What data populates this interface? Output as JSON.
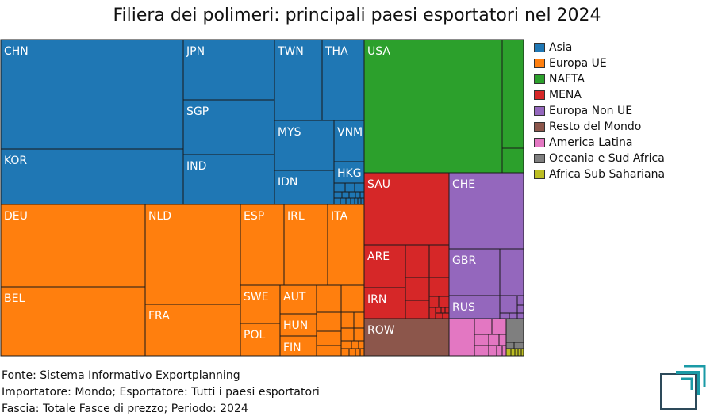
{
  "colors": {
    "asia": "#1f77b4",
    "europa_ue": "#ff7f0e",
    "nafta": "#2ca02c",
    "mena": "#d62728",
    "europa_non_ue": "#9467bd",
    "resto": "#8c564b",
    "america_latina": "#e377c2",
    "oceania": "#7f7f7f",
    "africa": "#bcbd22",
    "logo": "#1a9aa6",
    "logo_dark": "#2d4a5a"
  },
  "chart_data": {
    "type": "treemap",
    "title": "Filiera dei polimeri: principali paesi esportatori nel 2024",
    "legend": [
      {
        "label": "Asia",
        "color": "asia"
      },
      {
        "label": "Europa UE",
        "color": "europa_ue"
      },
      {
        "label": "NAFTA",
        "color": "nafta"
      },
      {
        "label": "MENA",
        "color": "mena"
      },
      {
        "label": "Europa Non UE",
        "color": "europa_non_ue"
      },
      {
        "label": "Resto del Mondo",
        "color": "resto"
      },
      {
        "label": "America Latina",
        "color": "america_latina"
      },
      {
        "label": "Oceania e Sud Africa",
        "color": "oceania"
      },
      {
        "label": "Africa Sub Sahariana",
        "color": "africa"
      }
    ],
    "legend_position": "right",
    "labeled_tiles": [
      {
        "label": "CHN",
        "group": "Asia"
      },
      {
        "label": "KOR",
        "group": "Asia"
      },
      {
        "label": "JPN",
        "group": "Asia"
      },
      {
        "label": "SGP",
        "group": "Asia"
      },
      {
        "label": "IND",
        "group": "Asia"
      },
      {
        "label": "TWN",
        "group": "Asia"
      },
      {
        "label": "THA",
        "group": "Asia"
      },
      {
        "label": "MYS",
        "group": "Asia"
      },
      {
        "label": "VNM",
        "group": "Asia"
      },
      {
        "label": "IDN",
        "group": "Asia"
      },
      {
        "label": "HKG",
        "group": "Asia"
      },
      {
        "label": "USA",
        "group": "NAFTA"
      },
      {
        "label": "DEU",
        "group": "Europa UE"
      },
      {
        "label": "BEL",
        "group": "Europa UE"
      },
      {
        "label": "NLD",
        "group": "Europa UE"
      },
      {
        "label": "FRA",
        "group": "Europa UE"
      },
      {
        "label": "ESP",
        "group": "Europa UE"
      },
      {
        "label": "IRL",
        "group": "Europa UE"
      },
      {
        "label": "ITA",
        "group": "Europa UE"
      },
      {
        "label": "SWE",
        "group": "Europa UE"
      },
      {
        "label": "AUT",
        "group": "Europa UE"
      },
      {
        "label": "POL",
        "group": "Europa UE"
      },
      {
        "label": "HUN",
        "group": "Europa UE"
      },
      {
        "label": "FIN",
        "group": "Europa UE"
      },
      {
        "label": "SAU",
        "group": "MENA"
      },
      {
        "label": "ARE",
        "group": "MENA"
      },
      {
        "label": "IRN",
        "group": "MENA"
      },
      {
        "label": "CHE",
        "group": "Europa Non UE"
      },
      {
        "label": "GBR",
        "group": "Europa Non UE"
      },
      {
        "label": "RUS",
        "group": "Europa Non UE"
      },
      {
        "label": "ROW",
        "group": "Resto del Mondo"
      }
    ]
  },
  "footer": {
    "line1": "Fonte: Sistema Informativo Exportplanning",
    "line2": "Importatore: Mondo; Esportatore: Tutti i paesi esportatori",
    "line3": "Fascia: Totale Fasce di prezzo; Periodo: 2024"
  }
}
